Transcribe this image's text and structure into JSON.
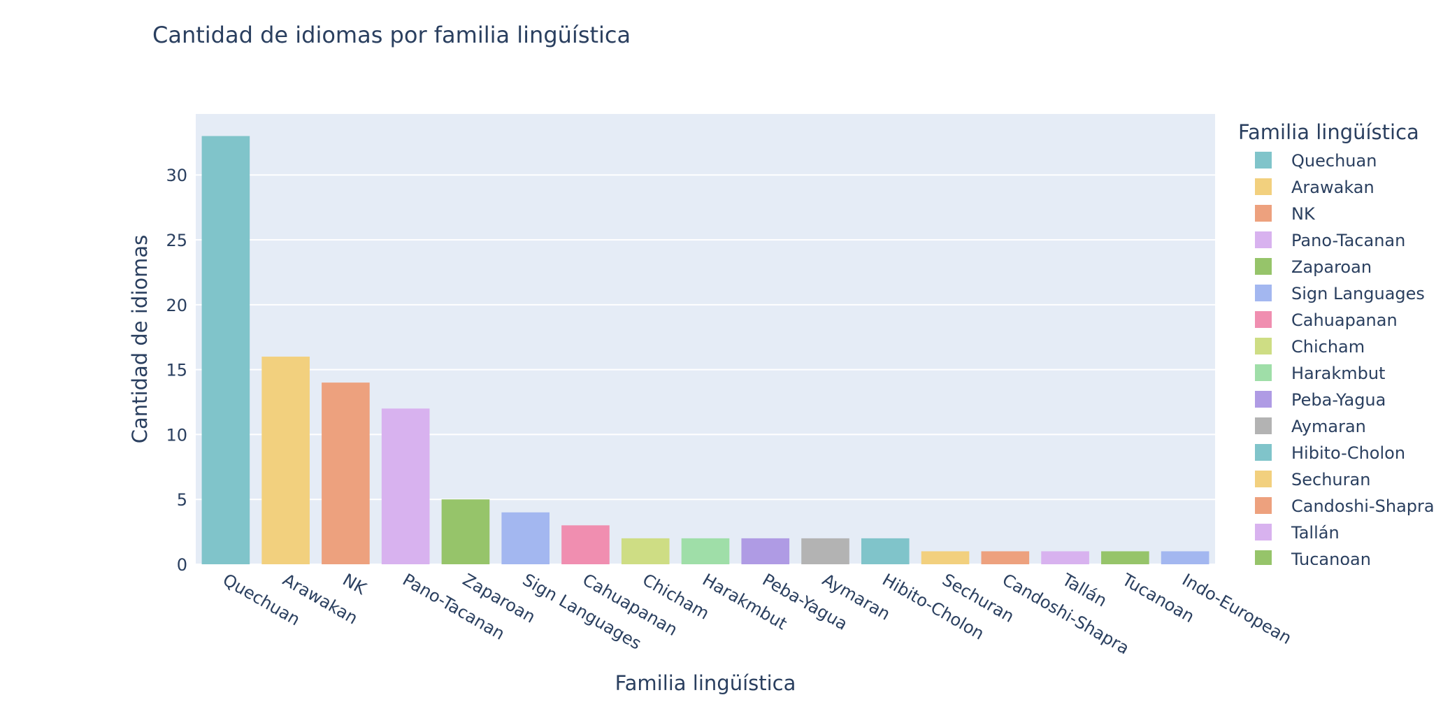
{
  "chart_data": {
    "type": "bar",
    "title": "Cantidad de idiomas por familia lingüística",
    "xlabel": "Familia lingüística",
    "ylabel": "Cantidad de idiomas",
    "ylim": [
      0,
      34.7
    ],
    "yticks": [
      0,
      5,
      10,
      15,
      20,
      25,
      30
    ],
    "grid": true,
    "legend_title": "Familia lingüística",
    "legend_position": "right",
    "categories": [
      "Quechuan",
      "Arawakan",
      "NK",
      "Pano-Tacanan",
      "Zaparoan",
      "Sign Languages",
      "Cahuapanan",
      "Chicham",
      "Harakmbut",
      "Peba-Yagua",
      "Aymaran",
      "Hibito-Cholon",
      "Sechuran",
      "Candoshi-Shapra",
      "Tallán",
      "Tucanoan",
      "Indo-European"
    ],
    "values": [
      33,
      16,
      14,
      12,
      5,
      4,
      3,
      2,
      2,
      2,
      2,
      2,
      1,
      1,
      1,
      1,
      1
    ],
    "colors": [
      "#80C4CA",
      "#F2D07E",
      "#EDA17E",
      "#D8B2EF",
      "#96C46A",
      "#A3B7F0",
      "#F08EB0",
      "#CEDD84",
      "#9FDEA8",
      "#AF9BE4",
      "#B3B3B3",
      "#80C4CA",
      "#F2D07E",
      "#EDA17E",
      "#D8B2EF",
      "#96C46A",
      "#A3B7F0"
    ],
    "legend_visible": [
      "Quechuan",
      "Arawakan",
      "NK",
      "Pano-Tacanan",
      "Zaparoan",
      "Sign Languages",
      "Cahuapanan",
      "Chicham",
      "Harakmbut",
      "Peba-Yagua",
      "Aymaran",
      "Hibito-Cholon",
      "Sechuran",
      "Candoshi-Shapra",
      "Tallán",
      "Tucanoan"
    ]
  },
  "colors": {
    "plot_bg": "#E5ECF6",
    "grid": "#FFFFFF",
    "text": "#2a3f5f"
  }
}
